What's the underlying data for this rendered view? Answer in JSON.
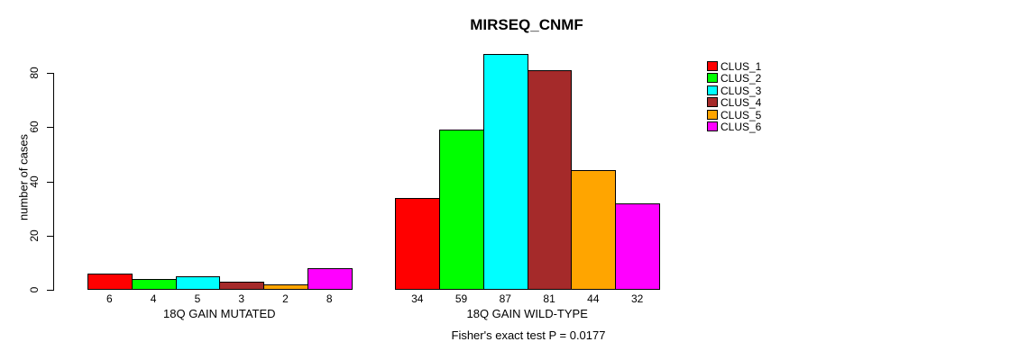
{
  "title": "MIRSEQ_CNMF",
  "footer": "Fisher's exact test P = 0.0177",
  "chart_data": {
    "type": "bar",
    "title": "MIRSEQ_CNMF",
    "xlabel": "",
    "ylabel": "number of cases",
    "ylim": [
      0,
      88
    ],
    "yticks": [
      0,
      20,
      40,
      60,
      80
    ],
    "grid": false,
    "legend_position": "right",
    "categories": [
      "CLUS_1",
      "CLUS_2",
      "CLUS_3",
      "CLUS_4",
      "CLUS_5",
      "CLUS_6"
    ],
    "series_colors": [
      "#FF0000",
      "#00FF00",
      "#00FFFF",
      "#A52A2A",
      "#FFA500",
      "#FF00FF"
    ],
    "groups": [
      {
        "label": "18Q GAIN MUTATED",
        "values": [
          6,
          4,
          5,
          3,
          2,
          8
        ]
      },
      {
        "label": "18Q GAIN WILD-TYPE",
        "values": [
          34,
          59,
          87,
          81,
          44,
          32
        ]
      }
    ],
    "annotation": "Fisher's exact test P = 0.0177",
    "legend": [
      {
        "label": "CLUS_1",
        "color": "#FF0000"
      },
      {
        "label": "CLUS_2",
        "color": "#00FF00"
      },
      {
        "label": "CLUS_3",
        "color": "#00FFFF"
      },
      {
        "label": "CLUS_4",
        "color": "#A52A2A"
      },
      {
        "label": "CLUS_5",
        "color": "#FFA500"
      },
      {
        "label": "CLUS_6",
        "color": "#FF00FF"
      }
    ]
  }
}
